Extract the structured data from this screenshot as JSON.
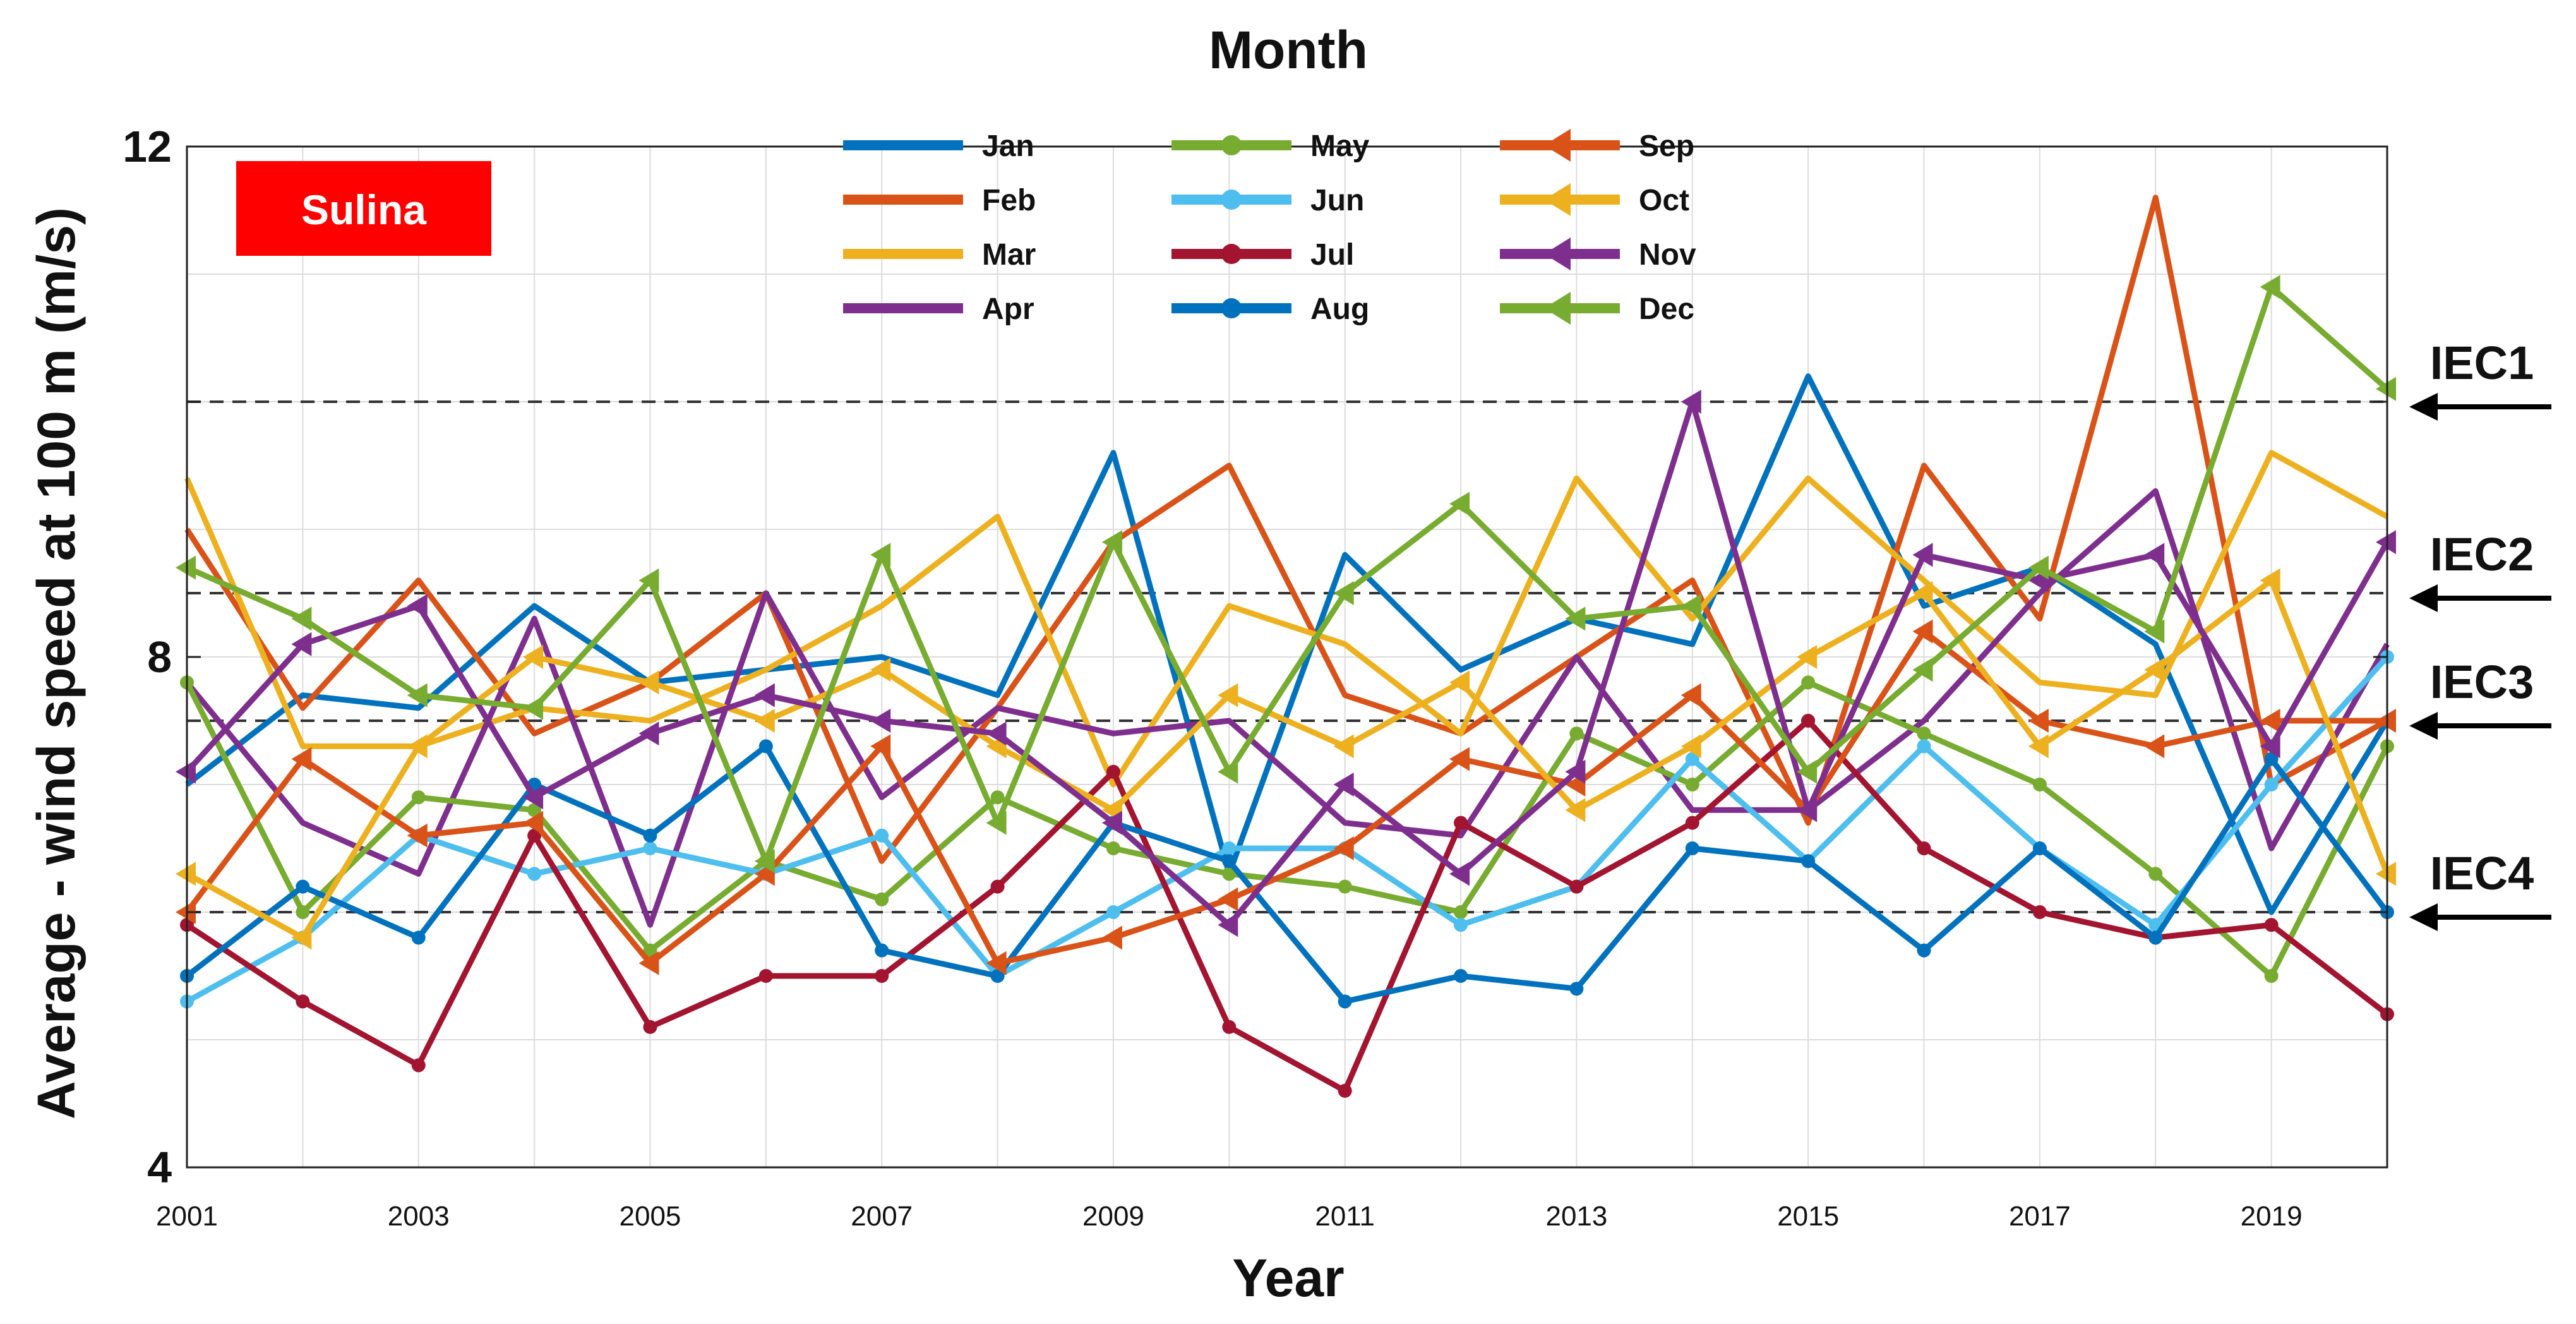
{
  "chart_data": {
    "type": "line",
    "title": "Month",
    "xlabel": "Year",
    "ylabel": "Average - wind speed at 100 m (m/s)",
    "station": "Sulina",
    "x": [
      2001,
      2002,
      2003,
      2004,
      2005,
      2006,
      2007,
      2008,
      2009,
      2010,
      2011,
      2012,
      2013,
      2014,
      2015,
      2016,
      2017,
      2018,
      2019,
      2020
    ],
    "xtick_labels": [
      "2001",
      "2003",
      "2005",
      "2007",
      "2009",
      "2011",
      "2013",
      "2015",
      "2017",
      "2019"
    ],
    "ylim": [
      4,
      12
    ],
    "yticks": [
      4,
      8,
      12
    ],
    "ytick_labels": [
      "4",
      "8",
      "12"
    ],
    "grid": true,
    "legend_title": "Month",
    "reference_lines": [
      {
        "label": "IEC1",
        "value": 10.0
      },
      {
        "label": "IEC2",
        "value": 8.5
      },
      {
        "label": "IEC3",
        "value": 7.5
      },
      {
        "label": "IEC4",
        "value": 6.0
      }
    ],
    "series": [
      {
        "name": "Jan",
        "color": "#0072BD",
        "marker": "none",
        "values": [
          7.0,
          7.7,
          7.6,
          8.4,
          7.8,
          7.9,
          8.0,
          7.7,
          9.6,
          6.3,
          8.8,
          7.9,
          8.3,
          8.1,
          10.2,
          8.4,
          8.7,
          8.1,
          6.0,
          7.5
        ]
      },
      {
        "name": "Feb",
        "color": "#D95319",
        "marker": "none",
        "values": [
          9.0,
          7.6,
          8.6,
          7.4,
          7.8,
          8.5,
          6.4,
          7.6,
          8.9,
          9.5,
          7.7,
          7.4,
          8.0,
          8.6,
          6.7,
          9.5,
          8.3,
          11.6,
          7.0,
          7.5
        ]
      },
      {
        "name": "Mar",
        "color": "#EDB120",
        "marker": "none",
        "values": [
          9.4,
          7.3,
          7.3,
          7.6,
          7.5,
          7.9,
          8.4,
          9.1,
          7.0,
          8.4,
          8.1,
          7.4,
          9.4,
          8.3,
          9.4,
          8.6,
          7.8,
          7.7,
          9.6,
          9.1
        ]
      },
      {
        "name": "Apr",
        "color": "#7E2F8E",
        "marker": "none",
        "values": [
          7.8,
          6.7,
          6.3,
          8.3,
          5.9,
          8.5,
          6.9,
          7.6,
          7.4,
          7.5,
          6.7,
          6.6,
          8.0,
          6.8,
          6.8,
          7.5,
          8.5,
          9.3,
          6.5,
          8.1
        ]
      },
      {
        "name": "May",
        "color": "#77AC30",
        "marker": "dot",
        "values": [
          7.8,
          6.0,
          6.9,
          6.8,
          5.7,
          6.4,
          6.1,
          6.9,
          6.5,
          6.3,
          6.2,
          6.0,
          7.4,
          7.0,
          7.8,
          7.4,
          7.0,
          6.3,
          5.5,
          7.3
        ]
      },
      {
        "name": "Jun",
        "color": "#4DBEEE",
        "marker": "dot",
        "values": [
          5.3,
          5.8,
          6.6,
          6.3,
          6.5,
          6.3,
          6.6,
          5.5,
          6.0,
          6.5,
          6.5,
          5.9,
          6.2,
          7.2,
          6.4,
          7.3,
          6.5,
          5.9,
          7.0,
          8.0
        ]
      },
      {
        "name": "Jul",
        "color": "#A2142F",
        "marker": "dot",
        "values": [
          5.9,
          5.3,
          4.8,
          6.6,
          5.1,
          5.5,
          5.5,
          6.2,
          7.1,
          5.1,
          4.6,
          6.7,
          6.2,
          6.7,
          7.5,
          6.5,
          6.0,
          5.8,
          5.9,
          5.2
        ]
      },
      {
        "name": "Aug",
        "color": "#0072BD",
        "marker": "dot",
        "values": [
          5.5,
          6.2,
          5.8,
          7.0,
          6.6,
          7.3,
          5.7,
          5.5,
          6.7,
          6.4,
          5.3,
          5.5,
          5.4,
          6.5,
          6.4,
          5.7,
          6.5,
          5.8,
          7.2,
          6.0
        ]
      },
      {
        "name": "Sep",
        "color": "#D95319",
        "marker": "triangle-left",
        "values": [
          6.0,
          7.2,
          6.6,
          6.7,
          5.6,
          6.3,
          7.3,
          5.6,
          5.8,
          6.1,
          6.5,
          7.2,
          7.0,
          7.7,
          6.8,
          8.2,
          7.5,
          7.3,
          7.5,
          7.5
        ]
      },
      {
        "name": "Oct",
        "color": "#EDB120",
        "marker": "triangle-left",
        "values": [
          6.3,
          5.8,
          7.3,
          8.0,
          7.8,
          7.5,
          7.9,
          7.3,
          6.8,
          7.7,
          7.3,
          7.8,
          6.8,
          7.3,
          8.0,
          8.5,
          7.3,
          7.9,
          8.6,
          6.3
        ]
      },
      {
        "name": "Nov",
        "color": "#7E2F8E",
        "marker": "triangle-left",
        "values": [
          7.1,
          8.1,
          8.4,
          6.9,
          7.4,
          7.7,
          7.5,
          7.4,
          6.7,
          5.9,
          7.0,
          6.3,
          7.1,
          10.0,
          6.8,
          8.8,
          8.6,
          8.8,
          7.3,
          8.9
        ]
      },
      {
        "name": "Dec",
        "color": "#77AC30",
        "marker": "triangle-left",
        "values": [
          8.7,
          8.3,
          7.7,
          7.6,
          8.6,
          6.4,
          8.8,
          6.7,
          8.9,
          7.1,
          8.5,
          9.2,
          8.3,
          8.4,
          7.1,
          7.9,
          8.7,
          8.2,
          10.9,
          10.1
        ]
      }
    ]
  }
}
